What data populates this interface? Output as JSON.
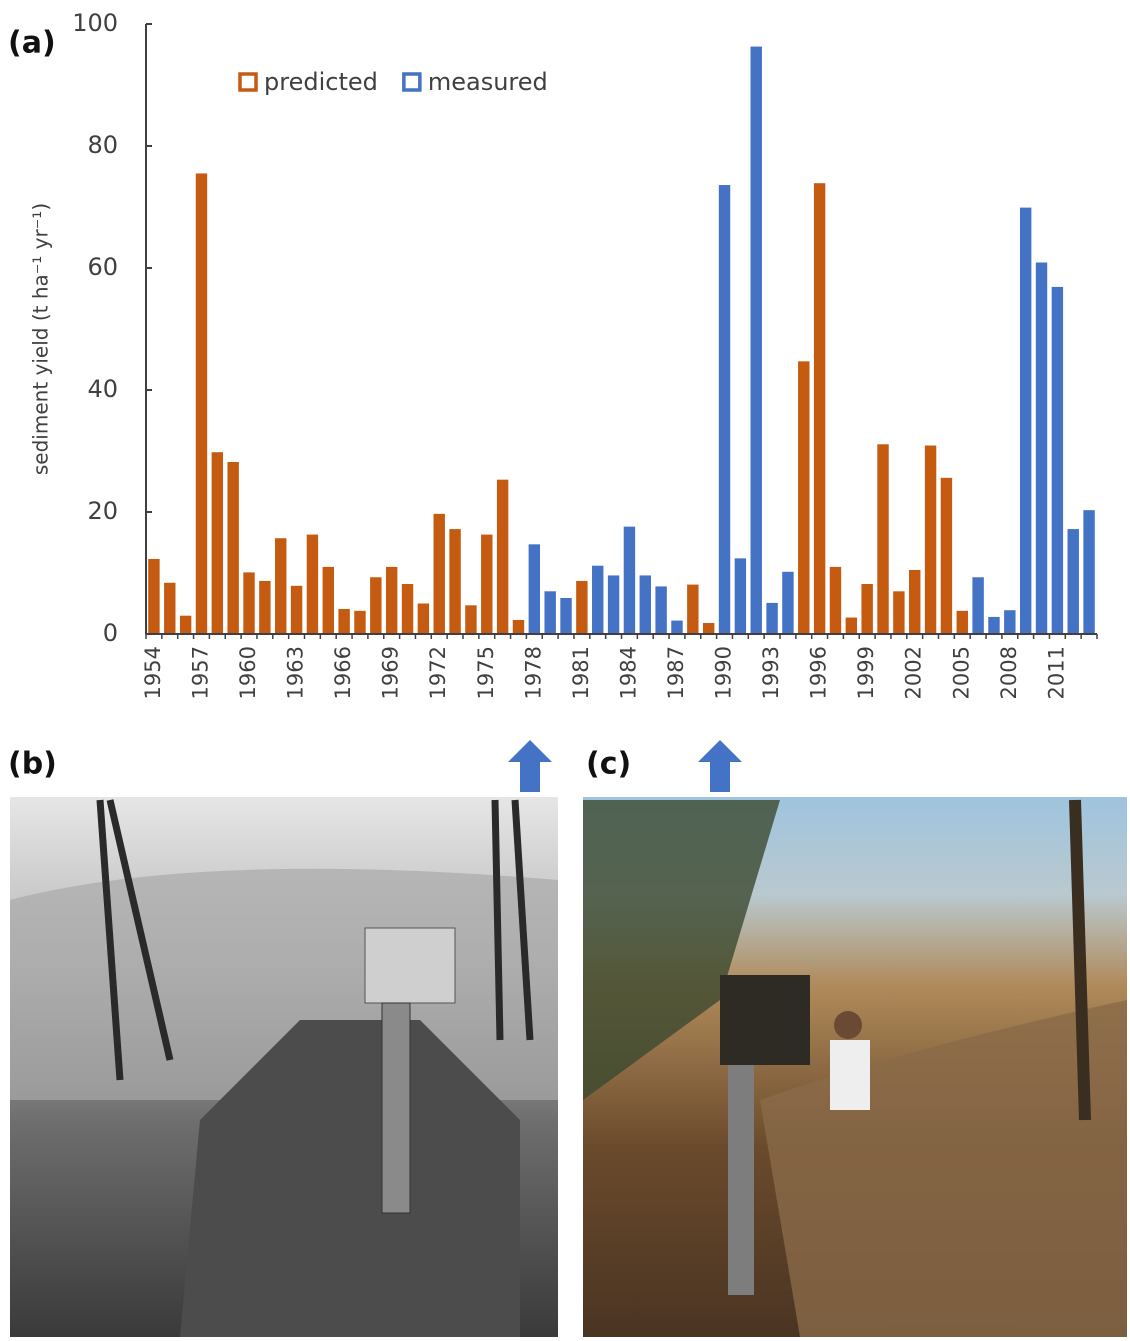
{
  "panel_labels": [
    "(a)",
    "(b)",
    "(c)"
  ],
  "chart_data": {
    "type": "bar",
    "y_label": "sediment yield (t ha⁻¹ yr⁻¹)",
    "categories": [
      "1954",
      null,
      null,
      "1957",
      null,
      null,
      "1960",
      null,
      null,
      "1963",
      null,
      null,
      "1966",
      null,
      null,
      "1969",
      null,
      null,
      "1972",
      null,
      null,
      "1975",
      null,
      null,
      "1978",
      null,
      null,
      "1981",
      null,
      null,
      "1984",
      null,
      null,
      "1987",
      null,
      null,
      "1990",
      null,
      null,
      "1993",
      null,
      null,
      "1996",
      null,
      null,
      "1999",
      null,
      null,
      "2002",
      null,
      null,
      "2005",
      null,
      null,
      "2008",
      null,
      null,
      "2011",
      null,
      null
    ],
    "series": [
      {
        "name": "predicted",
        "color": "#c55a11",
        "values": [
          12.3,
          8.4,
          3.0,
          75.5,
          29.8,
          28.2,
          10.1,
          8.7,
          15.7,
          7.9,
          16.3,
          11.0,
          4.1,
          3.8,
          9.3,
          11.0,
          8.2,
          5.0,
          19.7,
          17.2,
          4.7,
          16.3,
          25.3,
          2.3,
          null,
          null,
          null,
          8.7,
          null,
          null,
          null,
          null,
          null,
          null,
          8.1,
          1.8,
          null,
          null,
          null,
          null,
          null,
          44.7,
          73.9,
          11.0,
          2.7,
          8.2,
          31.1,
          7.0,
          10.5,
          30.9,
          25.6,
          3.8,
          null,
          null,
          null,
          null,
          null,
          null,
          null,
          null
        ]
      },
      {
        "name": "measured",
        "color": "#4472c4",
        "values": [
          null,
          null,
          null,
          null,
          null,
          null,
          null,
          null,
          null,
          null,
          null,
          null,
          null,
          null,
          null,
          null,
          null,
          null,
          null,
          null,
          null,
          null,
          null,
          null,
          14.7,
          7.0,
          5.9,
          null,
          11.2,
          9.6,
          17.6,
          9.6,
          7.8,
          2.2,
          null,
          null,
          73.6,
          12.4,
          96.3,
          5.1,
          10.2,
          null,
          null,
          null,
          null,
          null,
          null,
          null,
          null,
          null,
          null,
          null,
          9.3,
          2.8,
          3.9,
          69.9,
          60.9,
          56.9,
          17.2,
          20.3
        ]
      }
    ],
    "ylim": [
      0,
      100
    ],
    "yticks": [
      0,
      20,
      40,
      60,
      80,
      100
    ],
    "legend": "top-left"
  }
}
